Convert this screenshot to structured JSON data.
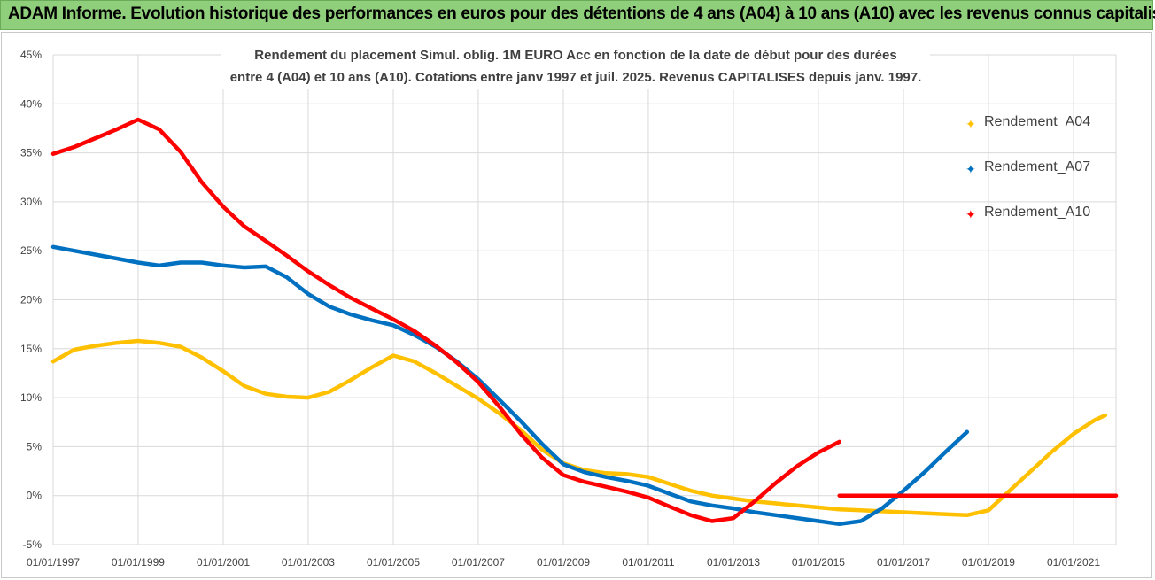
{
  "header": {
    "title": "ADAM Informe. Evolution historique des performances en euros pour des détentions de 4 ans (A04) à 10 ans (A10) avec les revenus connus capitalisés"
  },
  "chart_data": {
    "type": "line",
    "title_lines": [
      "Rendement du placement Simul. oblig. 1M EURO Acc en fonction de la date de début pour des durées",
      "entre 4 (A04) et 10 ans (A10). Cotations entre janv 1997 et juil. 2025. Revenus CAPITALISES depuis janv. 1997."
    ],
    "xlabel": "",
    "ylabel": "",
    "x_tick_labels": [
      "01/01/1997",
      "01/01/1999",
      "01/01/2001",
      "01/01/2003",
      "01/01/2005",
      "01/01/2007",
      "01/01/2009",
      "01/01/2011",
      "01/01/2013",
      "01/01/2015",
      "01/01/2017",
      "01/01/2019",
      "01/01/2021"
    ],
    "y_tick_labels": [
      "45%",
      "40%",
      "35%",
      "30%",
      "25%",
      "20%",
      "15%",
      "10%",
      "5%",
      "0%",
      "-5%"
    ],
    "ylim": [
      -5,
      45
    ],
    "xlim": [
      "1997-01-01",
      "2022-01-01"
    ],
    "grid": "vertical and horizontal",
    "legend_placement": "right",
    "series": [
      {
        "name": "Rendement_A04",
        "color": "#ffc000",
        "points": [
          [
            "1997-01-01",
            13.7
          ],
          [
            "1997-07-01",
            14.9
          ],
          [
            "1998-01-01",
            15.3
          ],
          [
            "1998-07-01",
            15.6
          ],
          [
            "1999-01-01",
            15.8
          ],
          [
            "1999-07-01",
            15.6
          ],
          [
            "2000-01-01",
            15.2
          ],
          [
            "2000-07-01",
            14.1
          ],
          [
            "2001-01-01",
            12.7
          ],
          [
            "2001-07-01",
            11.2
          ],
          [
            "2002-01-01",
            10.4
          ],
          [
            "2002-07-01",
            10.1
          ],
          [
            "2003-01-01",
            10.0
          ],
          [
            "2003-07-01",
            10.6
          ],
          [
            "2004-01-01",
            11.8
          ],
          [
            "2004-07-01",
            13.1
          ],
          [
            "2005-01-01",
            14.3
          ],
          [
            "2005-07-01",
            13.7
          ],
          [
            "2006-01-01",
            12.5
          ],
          [
            "2006-07-01",
            11.2
          ],
          [
            "2007-01-01",
            9.9
          ],
          [
            "2007-07-01",
            8.4
          ],
          [
            "2008-01-01",
            6.7
          ],
          [
            "2008-07-01",
            4.7
          ],
          [
            "2009-01-01",
            3.3
          ],
          [
            "2009-07-01",
            2.6
          ],
          [
            "2010-01-01",
            2.3
          ],
          [
            "2010-07-01",
            2.2
          ],
          [
            "2011-01-01",
            1.9
          ],
          [
            "2011-07-01",
            1.2
          ],
          [
            "2012-01-01",
            0.5
          ],
          [
            "2012-07-01",
            0.0
          ],
          [
            "2013-01-01",
            -0.3
          ],
          [
            "2013-07-01",
            -0.6
          ],
          [
            "2014-01-01",
            -0.8
          ],
          [
            "2014-07-01",
            -1.0
          ],
          [
            "2015-01-01",
            -1.2
          ],
          [
            "2015-07-01",
            -1.4
          ],
          [
            "2016-01-01",
            -1.5
          ],
          [
            "2016-07-01",
            -1.6
          ],
          [
            "2017-01-01",
            -1.7
          ],
          [
            "2017-07-01",
            -1.8
          ],
          [
            "2018-01-01",
            -1.9
          ],
          [
            "2018-07-01",
            -2.0
          ],
          [
            "2019-01-01",
            -1.5
          ],
          [
            "2019-07-01",
            0.5
          ],
          [
            "2020-01-01",
            2.5
          ],
          [
            "2020-07-01",
            4.5
          ],
          [
            "2021-01-01",
            6.3
          ],
          [
            "2021-07-01",
            7.7
          ],
          [
            "2021-10-01",
            8.2
          ]
        ]
      },
      {
        "name": "Rendement_A07",
        "color": "#0070c0",
        "points": [
          [
            "1997-01-01",
            25.4
          ],
          [
            "1997-07-01",
            25.0
          ],
          [
            "1998-01-01",
            24.6
          ],
          [
            "1998-07-01",
            24.2
          ],
          [
            "1999-01-01",
            23.8
          ],
          [
            "1999-07-01",
            23.5
          ],
          [
            "2000-01-01",
            23.8
          ],
          [
            "2000-07-01",
            23.8
          ],
          [
            "2001-01-01",
            23.5
          ],
          [
            "2001-07-01",
            23.3
          ],
          [
            "2002-01-01",
            23.4
          ],
          [
            "2002-07-01",
            22.3
          ],
          [
            "2003-01-01",
            20.6
          ],
          [
            "2003-07-01",
            19.3
          ],
          [
            "2004-01-01",
            18.5
          ],
          [
            "2004-07-01",
            17.9
          ],
          [
            "2005-01-01",
            17.4
          ],
          [
            "2005-07-01",
            16.4
          ],
          [
            "2006-01-01",
            15.2
          ],
          [
            "2006-07-01",
            13.7
          ],
          [
            "2007-01-01",
            11.9
          ],
          [
            "2007-07-01",
            9.8
          ],
          [
            "2008-01-01",
            7.6
          ],
          [
            "2008-07-01",
            5.3
          ],
          [
            "2009-01-01",
            3.2
          ],
          [
            "2009-07-01",
            2.4
          ],
          [
            "2010-01-01",
            1.9
          ],
          [
            "2010-07-01",
            1.5
          ],
          [
            "2011-01-01",
            1.0
          ],
          [
            "2011-07-01",
            0.2
          ],
          [
            "2012-01-01",
            -0.6
          ],
          [
            "2012-07-01",
            -1.0
          ],
          [
            "2013-01-01",
            -1.3
          ],
          [
            "2013-07-01",
            -1.7
          ],
          [
            "2014-01-01",
            -2.0
          ],
          [
            "2014-07-01",
            -2.3
          ],
          [
            "2015-01-01",
            -2.6
          ],
          [
            "2015-07-01",
            -2.9
          ],
          [
            "2016-01-01",
            -2.6
          ],
          [
            "2016-07-01",
            -1.3
          ],
          [
            "2017-01-01",
            0.5
          ],
          [
            "2017-07-01",
            2.4
          ],
          [
            "2018-01-01",
            4.5
          ],
          [
            "2018-07-01",
            6.5
          ]
        ]
      },
      {
        "name": "Rendement_A10",
        "color": "#ff0000",
        "points": [
          [
            "1997-01-01",
            34.9
          ],
          [
            "1997-07-01",
            35.6
          ],
          [
            "1998-01-01",
            36.5
          ],
          [
            "1998-07-01",
            37.4
          ],
          [
            "1999-01-01",
            38.4
          ],
          [
            "1999-07-01",
            37.4
          ],
          [
            "2000-01-01",
            35.1
          ],
          [
            "2000-07-01",
            32.0
          ],
          [
            "2001-01-01",
            29.5
          ],
          [
            "2001-07-01",
            27.5
          ],
          [
            "2002-01-01",
            26.0
          ],
          [
            "2002-07-01",
            24.5
          ],
          [
            "2003-01-01",
            22.9
          ],
          [
            "2003-07-01",
            21.5
          ],
          [
            "2004-01-01",
            20.2
          ],
          [
            "2004-07-01",
            19.1
          ],
          [
            "2005-01-01",
            18.0
          ],
          [
            "2005-07-01",
            16.8
          ],
          [
            "2006-01-01",
            15.3
          ],
          [
            "2006-07-01",
            13.6
          ],
          [
            "2007-01-01",
            11.6
          ],
          [
            "2007-07-01",
            9.1
          ],
          [
            "2008-01-01",
            6.3
          ],
          [
            "2008-07-01",
            3.9
          ],
          [
            "2009-01-01",
            2.1
          ],
          [
            "2009-07-01",
            1.4
          ],
          [
            "2010-01-01",
            0.9
          ],
          [
            "2010-07-01",
            0.4
          ],
          [
            "2011-01-01",
            -0.2
          ],
          [
            "2011-07-01",
            -1.1
          ],
          [
            "2012-01-01",
            -2.0
          ],
          [
            "2012-07-01",
            -2.6
          ],
          [
            "2013-01-01",
            -2.3
          ],
          [
            "2013-07-01",
            -0.6
          ],
          [
            "2014-01-01",
            1.3
          ],
          [
            "2014-07-01",
            3.0
          ],
          [
            "2015-01-01",
            4.4
          ],
          [
            "2015-07-01",
            5.5
          ]
        ]
      },
      {
        "name": "",
        "color": "#ff0000",
        "points": [
          [
            "2015-07-01",
            0.0
          ],
          [
            "2022-01-01",
            0.0
          ]
        ]
      }
    ]
  }
}
